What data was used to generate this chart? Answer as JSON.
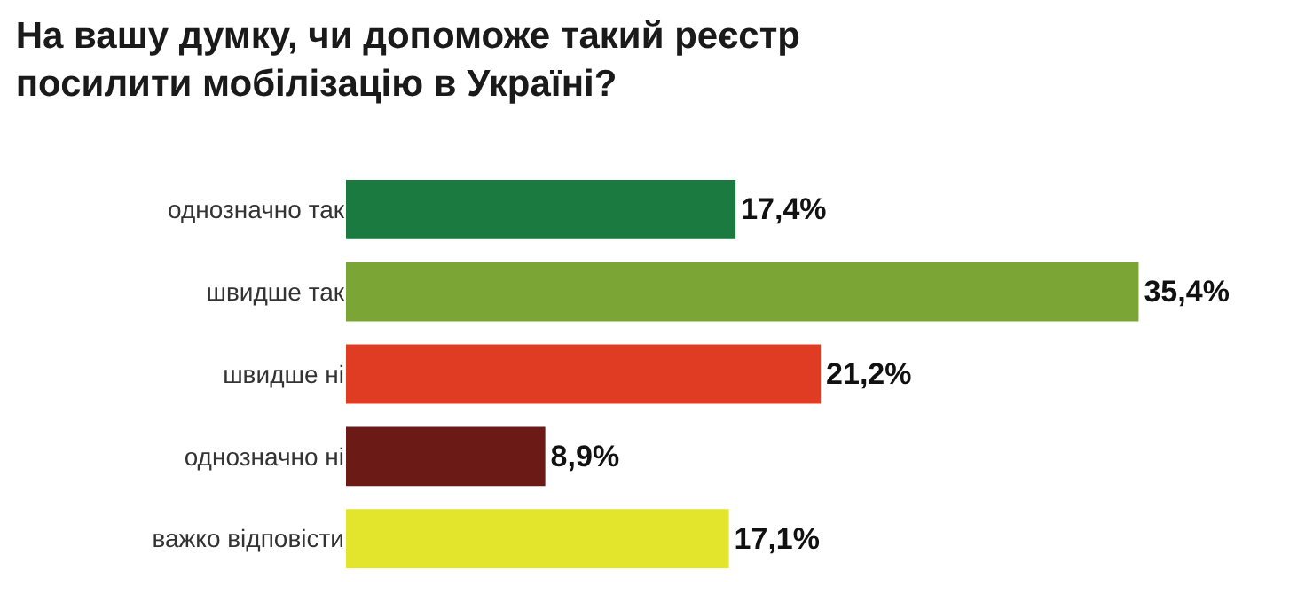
{
  "chart_data": {
    "type": "bar",
    "orientation": "horizontal",
    "title": "На вашу думку, чи допоможе такий реєстр\nпосилити мобілізацію в Україні?",
    "categories": [
      "однозначно так",
      "швидше так",
      "швидше ні",
      "однозначно ні",
      "важко відповісти"
    ],
    "values": [
      17.4,
      35.4,
      21.2,
      8.9,
      17.1
    ],
    "colors": [
      "#1b7a3f",
      "#7ba534",
      "#e03c24",
      "#6b1a15",
      "#e3e52c"
    ],
    "value_labels": [
      "17,4%",
      "35,4%",
      "21,2%",
      "8,9%",
      "17,1%"
    ],
    "legend": false
  }
}
